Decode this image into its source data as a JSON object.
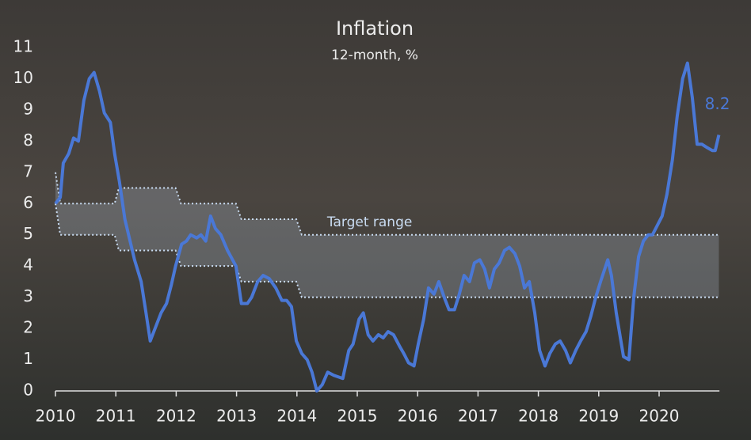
{
  "chart_data": {
    "type": "line",
    "title": "Inflation",
    "subtitle": "12-month, %",
    "xlim": [
      2010,
      2021
    ],
    "xticks": [
      2010,
      2011,
      2012,
      2013,
      2014,
      2015,
      2016,
      2017,
      2018,
      2019,
      2020
    ],
    "ylim": [
      0,
      11
    ],
    "yticks": [
      0,
      1,
      2,
      3,
      4,
      5,
      6,
      7,
      8,
      9,
      10,
      11
    ],
    "grid": false,
    "series": [
      {
        "color": "#4a78d6",
        "x": [
          2010.0,
          2010.08,
          2010.13,
          2010.22,
          2010.3,
          2010.38,
          2010.47,
          2010.56,
          2010.64,
          2010.73,
          2010.81,
          2010.91,
          2010.98,
          2011.06,
          2011.15,
          2011.31,
          2011.42,
          2011.5,
          2011.57,
          2011.65,
          2011.75,
          2011.84,
          2011.92,
          2011.99,
          2012.09,
          2012.17,
          2012.24,
          2012.34,
          2012.41,
          2012.49,
          2012.57,
          2012.65,
          2012.74,
          2012.85,
          2012.99,
          2013.08,
          2013.18,
          2013.25,
          2013.35,
          2013.44,
          2013.54,
          2013.65,
          2013.75,
          2013.83,
          2013.91,
          2013.99,
          2014.08,
          2014.17,
          2014.25,
          2014.33,
          2014.42,
          2014.51,
          2014.61,
          2014.76,
          2014.86,
          2014.93,
          2015.03,
          2015.1,
          2015.18,
          2015.26,
          2015.35,
          2015.43,
          2015.51,
          2015.6,
          2015.71,
          2015.77,
          2015.85,
          2015.94,
          2016.01,
          2016.1,
          2016.18,
          2016.27,
          2016.35,
          2016.44,
          2016.52,
          2016.61,
          2016.69,
          2016.77,
          2016.86,
          2016.94,
          2017.03,
          2017.11,
          2017.19,
          2017.27,
          2017.35,
          2017.44,
          2017.52,
          2017.61,
          2017.69,
          2017.77,
          2017.85,
          2017.94,
          2018.02,
          2018.11,
          2018.19,
          2018.28,
          2018.36,
          2018.45,
          2018.53,
          2018.62,
          2018.7,
          2018.79,
          2018.87,
          2018.95,
          2019.03,
          2019.15,
          2019.21,
          2019.29,
          2019.41,
          2019.5,
          2019.58,
          2019.66,
          2019.74,
          2019.82,
          2019.89,
          2019.97,
          2020.05,
          2020.13,
          2020.22,
          2020.3,
          2020.39,
          2020.47,
          2020.55,
          2020.63,
          2020.71,
          2020.79,
          2020.88,
          2020.93,
          2020.99
        ],
        "values": [
          6.0,
          6.2,
          7.3,
          7.6,
          8.1,
          8.0,
          9.3,
          10.0,
          10.2,
          9.6,
          8.9,
          8.6,
          7.6,
          6.7,
          5.5,
          4.2,
          3.5,
          2.5,
          1.6,
          2.0,
          2.5,
          2.8,
          3.4,
          4.0,
          4.7,
          4.8,
          5.0,
          4.9,
          5.0,
          4.8,
          5.6,
          5.2,
          5.0,
          4.5,
          4.0,
          2.8,
          2.8,
          3.0,
          3.5,
          3.7,
          3.6,
          3.3,
          2.9,
          2.9,
          2.7,
          1.6,
          1.2,
          1.0,
          0.6,
          0.0,
          0.2,
          0.6,
          0.5,
          0.4,
          1.3,
          1.5,
          2.3,
          2.5,
          1.8,
          1.6,
          1.8,
          1.7,
          1.9,
          1.8,
          1.4,
          1.2,
          0.9,
          0.8,
          1.5,
          2.3,
          3.3,
          3.1,
          3.5,
          3.0,
          2.6,
          2.6,
          3.1,
          3.7,
          3.5,
          4.1,
          4.2,
          3.9,
          3.3,
          3.9,
          4.1,
          4.5,
          4.6,
          4.4,
          4.0,
          3.3,
          3.5,
          2.5,
          1.3,
          0.8,
          1.2,
          1.5,
          1.6,
          1.3,
          0.9,
          1.3,
          1.6,
          1.9,
          2.4,
          3.0,
          3.5,
          4.2,
          3.7,
          2.5,
          1.1,
          1.0,
          3.0,
          4.3,
          4.8,
          5.0,
          5.0,
          5.3,
          5.6,
          6.3,
          7.4,
          8.8,
          10.0,
          10.5,
          9.4,
          7.9,
          7.9,
          7.8,
          7.7,
          7.7,
          8.2
        ]
      }
    ],
    "target_range": {
      "label": "Target range",
      "color": "#c9dcf2",
      "x": [
        2010.0,
        2010.08,
        2010.98,
        2011.05,
        2011.99,
        2012.08,
        2012.99,
        2013.08,
        2013.99,
        2014.08,
        2020.99
      ],
      "upper": [
        7,
        6,
        6,
        6.5,
        6.5,
        6,
        6,
        5.5,
        5.5,
        5,
        5
      ],
      "lower": [
        6,
        5,
        5,
        4.5,
        4.5,
        4,
        4,
        3.5,
        3.5,
        3,
        3
      ],
      "label_x": 2014.5,
      "label_y": 5.4
    }
  }
}
